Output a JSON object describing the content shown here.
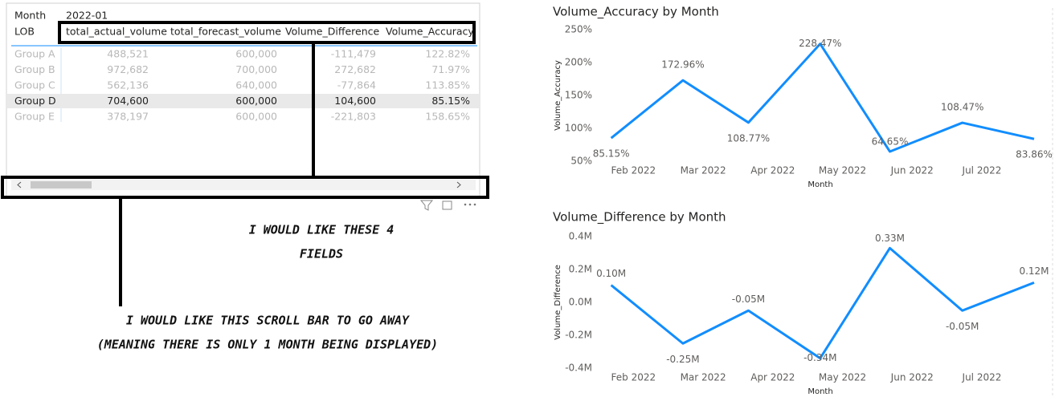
{
  "table": {
    "month_label": "Month",
    "month_value": "2022-01",
    "row_header": "LOB",
    "columns": [
      "total_actual_volume",
      "total_forecast_volume",
      "Volume_Difference",
      "Volume_Accuracy"
    ],
    "rows": [
      [
        "Group A",
        "488,521",
        "600,000",
        "-111,479",
        "122.82%"
      ],
      [
        "Group B",
        "972,682",
        "700,000",
        "272,682",
        "71.97%"
      ],
      [
        "Group C",
        "562,136",
        "640,000",
        "-77,864",
        "113.85%"
      ],
      [
        "Group D",
        "704,600",
        "600,000",
        "104,600",
        "85.15%"
      ],
      [
        "Group E",
        "378,197",
        "600,000",
        "-221,803",
        "158.65%"
      ]
    ]
  },
  "annotations": [
    [
      "I WOULD LIKE THESE 4",
      "FIELDS"
    ],
    [
      "I WOULD LIKE THIS SCROLL BAR TO GO AWAY",
      "(MEANING THERE IS ONLY 1 MONTH BEING DISPLAYED)"
    ]
  ],
  "chart_data": [
    {
      "type": "line",
      "title": "Volume_Accuracy by Month",
      "x_label": "Month",
      "y_label": "Volume_Accuracy",
      "color": "#118DFF",
      "x": [
        0.68,
        1.71,
        2.65,
        3.68,
        4.68,
        5.72,
        6.75
      ],
      "values": [
        85.15,
        172.96,
        108.77,
        228.47,
        64.65,
        108.47,
        83.86
      ],
      "value_labels": [
        "85.15%",
        "172.96%",
        "108.77%",
        "228.47%",
        "64.65%",
        "108.47%",
        "83.86%"
      ],
      "xlim": [
        0.5,
        6.9
      ],
      "xticks": [
        {
          "value": 1,
          "label": "Feb 2022"
        },
        {
          "value": 2,
          "label": "Mar 2022"
        },
        {
          "value": 3,
          "label": "Apr 2022"
        },
        {
          "value": 4,
          "label": "May 2022"
        },
        {
          "value": 5,
          "label": "Jun 2022"
        },
        {
          "value": 6,
          "label": "Jul 2022"
        }
      ],
      "ylim": [
        50,
        250
      ],
      "yticks": [
        {
          "value": 50,
          "label": "50%"
        },
        {
          "value": 100,
          "label": "100%"
        },
        {
          "value": 150,
          "label": "150%"
        },
        {
          "value": 200,
          "label": "200%"
        },
        {
          "value": 250,
          "label": "250%"
        }
      ]
    },
    {
      "type": "line",
      "title": "Volume_Difference by Month",
      "x_label": "Month",
      "y_label": "Volume_Difference",
      "color": "#118DFF",
      "x": [
        0.68,
        1.71,
        2.65,
        3.68,
        4.68,
        5.72,
        6.75
      ],
      "values": [
        0.1046,
        -0.25,
        -0.05,
        -0.34,
        0.33,
        -0.05,
        0.12
      ],
      "value_labels": [
        "0.10M",
        "-0.25M",
        "-0.05M",
        "-0.34M",
        "0.33M",
        "-0.05M",
        "0.12M"
      ],
      "xlim": [
        0.5,
        6.9
      ],
      "xticks": [
        {
          "value": 1,
          "label": "Feb 2022"
        },
        {
          "value": 2,
          "label": "Mar 2022"
        },
        {
          "value": 3,
          "label": "Apr 2022"
        },
        {
          "value": 4,
          "label": "May 2022"
        },
        {
          "value": 5,
          "label": "Jun 2022"
        },
        {
          "value": 6,
          "label": "Jul 2022"
        }
      ],
      "ylim": [
        -0.4,
        0.4
      ],
      "yticks": [
        {
          "value": -0.4,
          "label": "-0.4M"
        },
        {
          "value": -0.2,
          "label": "-0.2M"
        },
        {
          "value": 0,
          "label": "0.0M"
        },
        {
          "value": 0.2,
          "label": "0.2M"
        },
        {
          "value": 0.4,
          "label": "0.4M"
        }
      ]
    }
  ]
}
